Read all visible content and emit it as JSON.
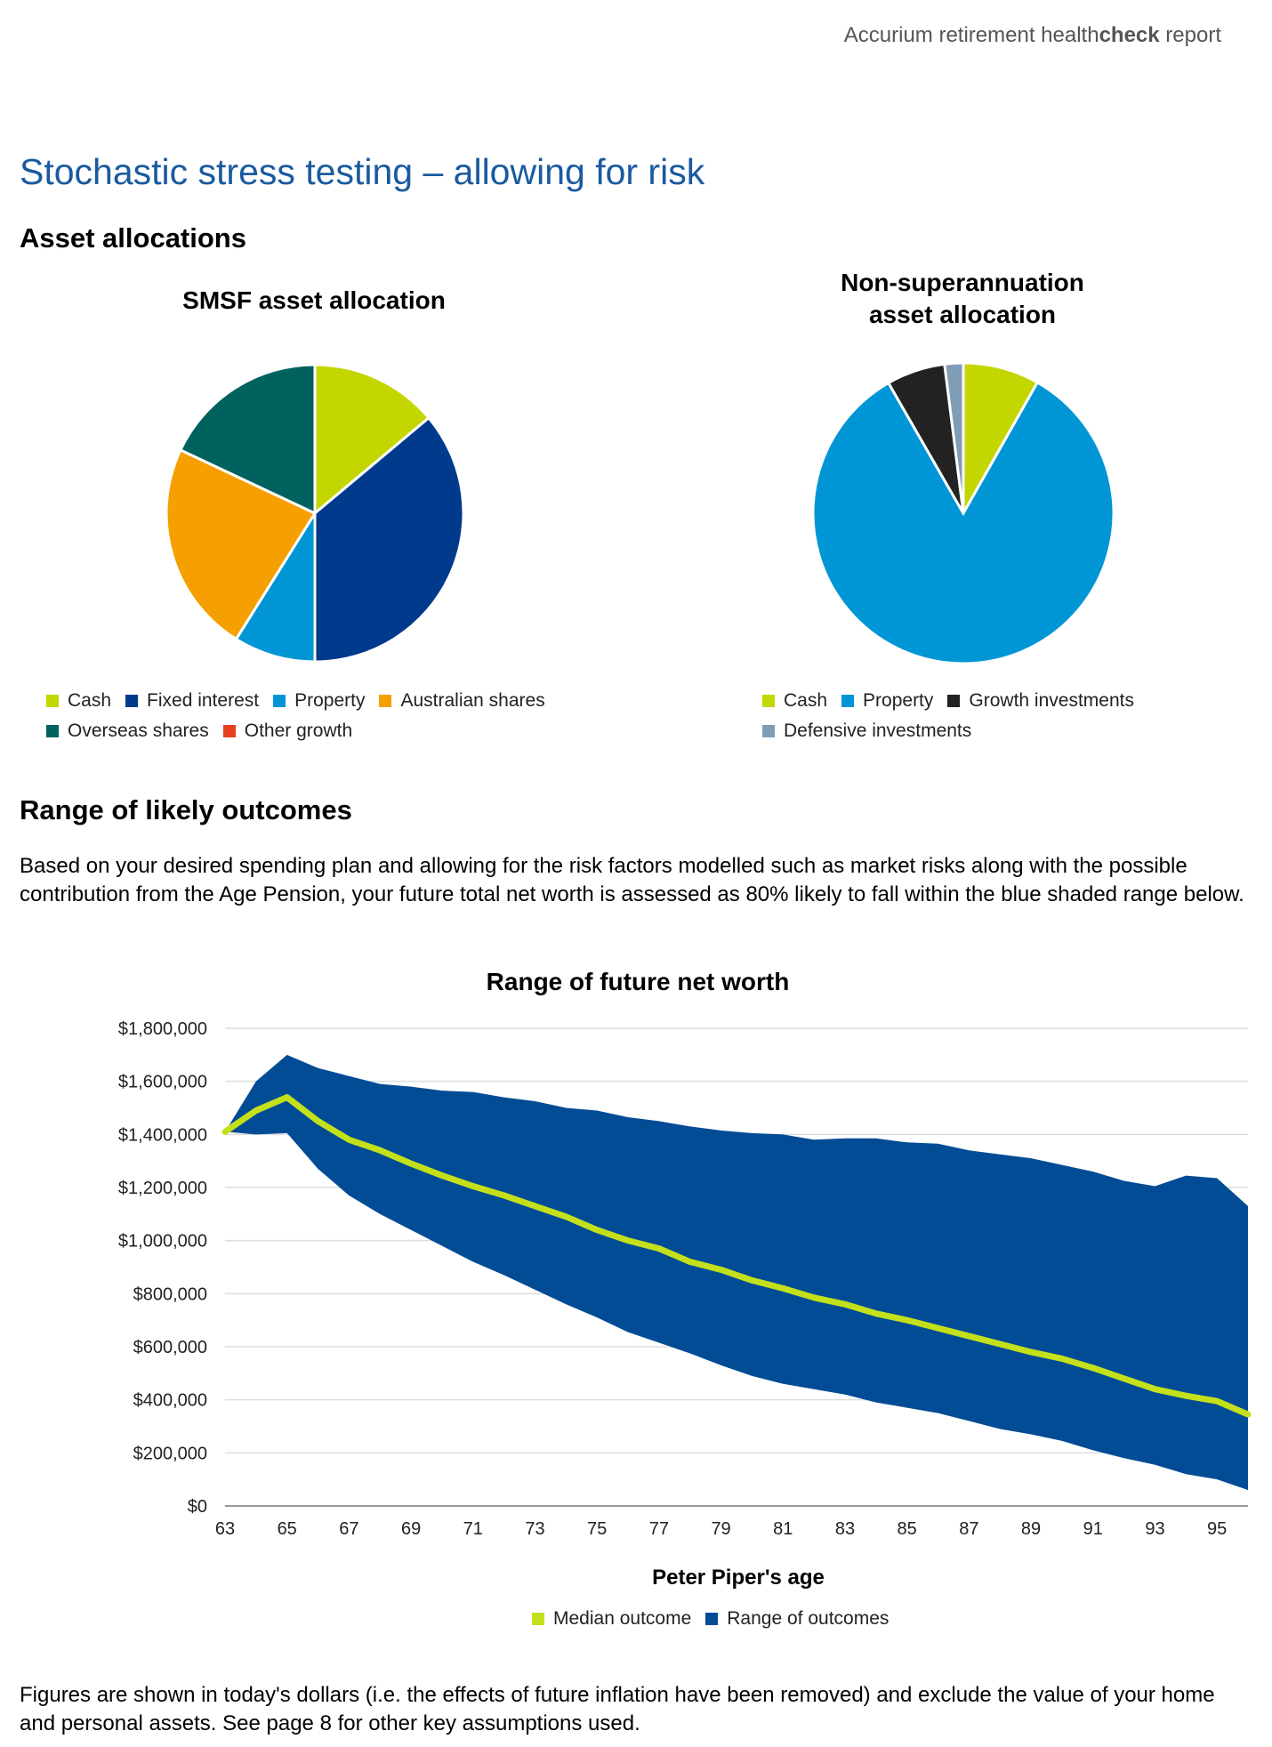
{
  "header": {
    "pre": "Accurium retirement health",
    "bold": "check",
    "post": " report"
  },
  "page_title": "Stochastic stress testing – allowing for risk",
  "asset_allocations_heading": "Asset allocations",
  "range_heading": "Range of likely outcomes",
  "paragraph": "Based on your desired spending plan and allowing for the risk factors modelled such as market risks along with the possible contribution from the Age Pension, your future total net worth is assessed as 80% likely to fall within the blue shaded range below.",
  "footer": "Figures are shown in today's dollars (i.e. the effects of future inflation have been removed) and exclude the value of your home and personal assets. See page 8 for other key assumptions used.",
  "chart_data": [
    {
      "type": "pie",
      "title": "SMSF asset allocation",
      "labels": [
        "Cash",
        "Fixed interest",
        "Property",
        "Australian shares",
        "Overseas shares",
        "Other growth"
      ],
      "values": [
        13.9,
        36.1,
        8.9,
        23.1,
        18.0,
        0
      ],
      "colors": [
        "#c4d600",
        "#003a8c",
        "#0096d6",
        "#f5a000",
        "#00625f",
        "#e8401c"
      ]
    },
    {
      "type": "pie",
      "title": "Non-superannuation asset allocation",
      "title_lines": [
        "Non-superannuation",
        "asset allocation"
      ],
      "labels": [
        "Cash",
        "Property",
        "Growth investments",
        "Defensive investments"
      ],
      "values": [
        8.2,
        83.5,
        6.3,
        2.0
      ],
      "colors": [
        "#c4d600",
        "#0096d6",
        "#222222",
        "#7f9db5"
      ]
    },
    {
      "type": "area",
      "title": "Range of future net worth",
      "xlabel": "Peter Piper's age",
      "ylabel": "",
      "ylim": [
        0,
        1800000
      ],
      "yticks": [
        "$0",
        "$200,000",
        "$400,000",
        "$600,000",
        "$800,000",
        "$1,000,000",
        "$1,200,000",
        "$1,400,000",
        "$1,600,000",
        "$1,800,000"
      ],
      "xticks": [
        "63",
        "65",
        "67",
        "69",
        "71",
        "73",
        "75",
        "77",
        "79",
        "81",
        "83",
        "85",
        "87",
        "89",
        "91",
        "93",
        "95"
      ],
      "x": [
        63,
        64,
        65,
        66,
        67,
        68,
        69,
        70,
        71,
        72,
        73,
        74,
        75,
        76,
        77,
        78,
        79,
        80,
        81,
        82,
        83,
        84,
        85,
        86,
        87,
        88,
        89,
        90,
        91,
        92,
        93,
        94,
        95,
        96
      ],
      "grid": true,
      "legend_position": "bottom",
      "series": [
        {
          "name": "Median outcome",
          "type": "line",
          "color": "#c4e01a",
          "values": [
            1410000,
            1490000,
            1540000,
            1450000,
            1380000,
            1340000,
            1290000,
            1245000,
            1205000,
            1170000,
            1130000,
            1090000,
            1040000,
            1000000,
            970000,
            920000,
            890000,
            850000,
            820000,
            785000,
            760000,
            725000,
            700000,
            670000,
            640000,
            610000,
            580000,
            555000,
            520000,
            480000,
            440000,
            415000,
            395000,
            345000
          ]
        },
        {
          "name": "Range of outcomes",
          "type": "band",
          "color": "#024c96",
          "upper": [
            1410000,
            1600000,
            1700000,
            1650000,
            1620000,
            1590000,
            1580000,
            1565000,
            1560000,
            1540000,
            1525000,
            1500000,
            1490000,
            1465000,
            1450000,
            1430000,
            1415000,
            1405000,
            1400000,
            1380000,
            1385000,
            1385000,
            1370000,
            1365000,
            1340000,
            1325000,
            1310000,
            1285000,
            1260000,
            1225000,
            1205000,
            1245000,
            1235000,
            1130000
          ],
          "lower": [
            1410000,
            1400000,
            1405000,
            1270000,
            1170000,
            1100000,
            1040000,
            980000,
            920000,
            870000,
            815000,
            760000,
            710000,
            655000,
            615000,
            575000,
            530000,
            490000,
            460000,
            440000,
            420000,
            390000,
            370000,
            350000,
            320000,
            290000,
            270000,
            245000,
            210000,
            180000,
            155000,
            120000,
            100000,
            60000
          ]
        }
      ]
    }
  ]
}
